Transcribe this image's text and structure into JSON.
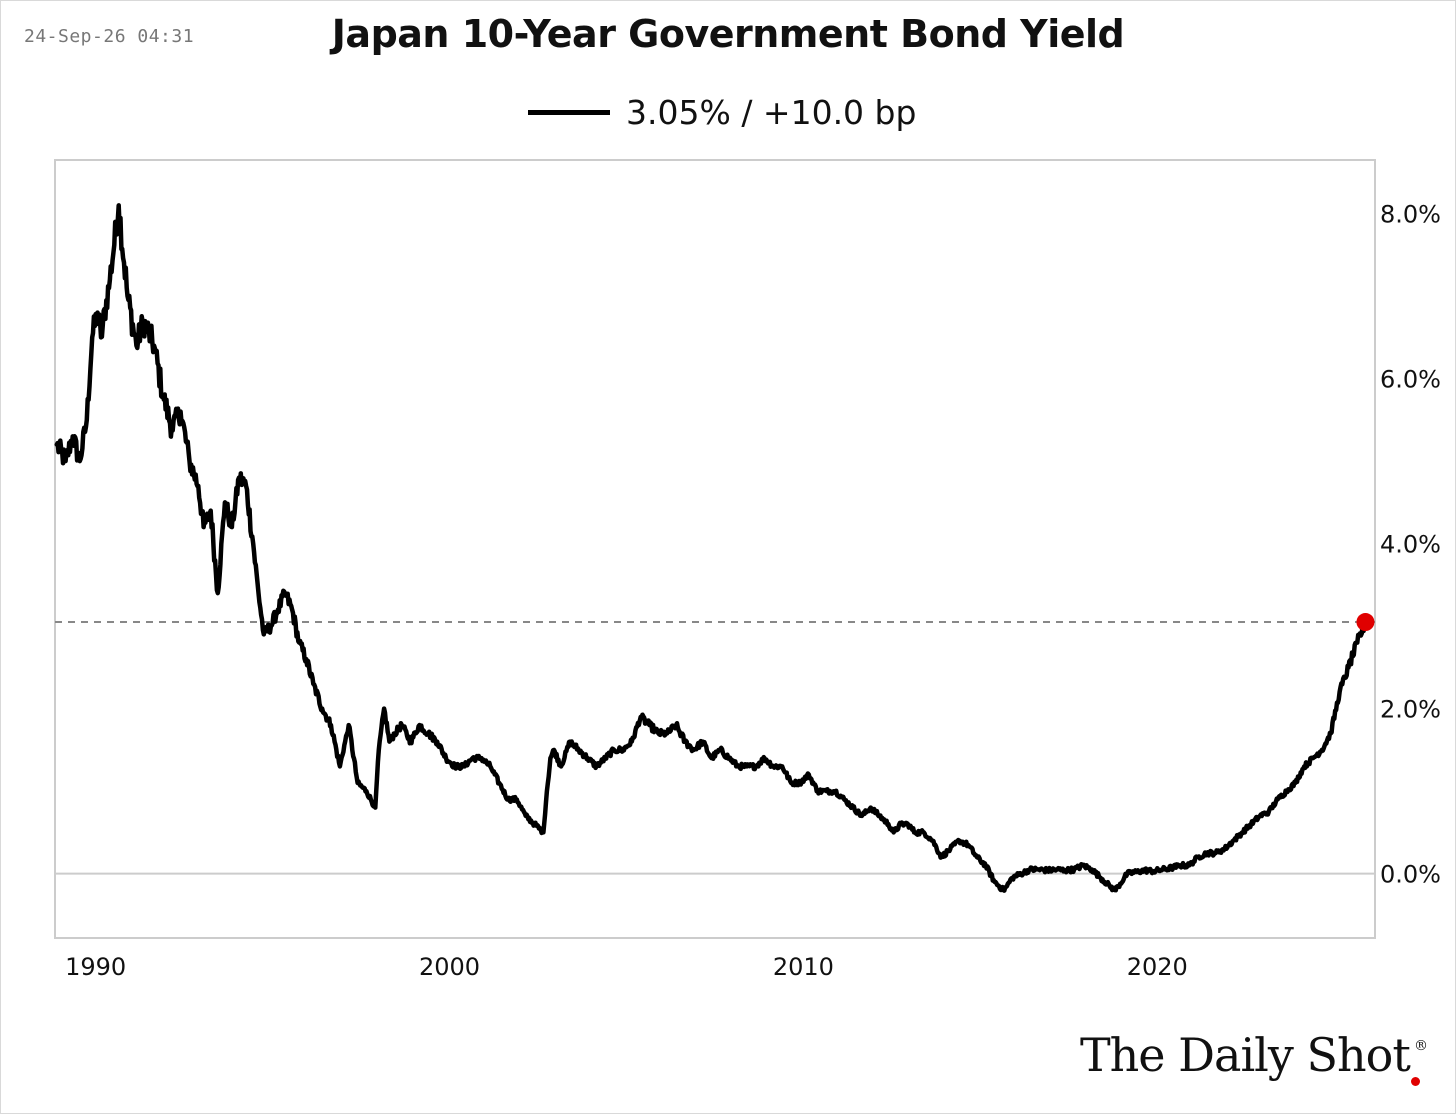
{
  "timestamp": "24-Sep-26 04:31",
  "title": "Japan 10-Year Government Bond Yield",
  "legend": {
    "label": "3.05% / +10.0 bp"
  },
  "brand": {
    "name": "The Daily Shot",
    "reg_mark": "®"
  },
  "colors": {
    "line": "#000000",
    "marker": "#e00000",
    "grid": "#cccccc",
    "reference_line": "#888888"
  },
  "chart_data": {
    "type": "line",
    "title": "Japan 10-Year Government Bond Yield",
    "xlabel": "",
    "ylabel": "",
    "x_ticks": [
      "1990",
      "2000",
      "2010",
      "2020"
    ],
    "y_ticks": [
      "0.0%",
      "2.0%",
      "4.0%",
      "6.0%",
      "8.0%"
    ],
    "xlim": [
      1989.7,
      2027.0
    ],
    "ylim": [
      -0.78,
      8.65
    ],
    "y_axis_side": "right",
    "grid": false,
    "reference_line": {
      "y": 3.05,
      "style": "dashed"
    },
    "last_point": {
      "x": 2026.73,
      "y": 3.05
    },
    "series": [
      {
        "name": "3.05% / +10.0 bp",
        "x": [
          1989.75,
          1990.0,
          1990.2,
          1990.4,
          1990.6,
          1990.75,
          1990.9,
          1991.0,
          1991.25,
          1991.5,
          1991.75,
          1992.0,
          1992.2,
          1992.5,
          1992.75,
          1993.0,
          1993.25,
          1993.5,
          1993.75,
          1993.9,
          1994.1,
          1994.3,
          1994.5,
          1994.7,
          1994.9,
          1995.1,
          1995.3,
          1995.45,
          1995.6,
          1995.8,
          1996.0,
          1996.2,
          1996.4,
          1996.6,
          1996.8,
          1997.0,
          1997.25,
          1997.5,
          1997.75,
          1998.0,
          1998.25,
          1998.5,
          1998.75,
          1998.85,
          1999.0,
          1999.15,
          1999.3,
          1999.5,
          1999.75,
          2000.0,
          2000.25,
          2000.5,
          2000.75,
          2001.0,
          2001.25,
          2001.5,
          2001.75,
          2002.0,
          2002.25,
          2002.5,
          2002.75,
          2003.0,
          2003.25,
          2003.5,
          2003.6,
          2003.7,
          2003.8,
          2004.0,
          2004.25,
          2004.5,
          2004.75,
          2005.0,
          2005.25,
          2005.5,
          2005.75,
          2006.0,
          2006.25,
          2006.5,
          2006.75,
          2007.0,
          2007.25,
          2007.5,
          2007.75,
          2008.0,
          2008.25,
          2008.5,
          2008.75,
          2009.0,
          2009.25,
          2009.5,
          2009.75,
          2010.0,
          2010.25,
          2010.5,
          2010.75,
          2011.0,
          2011.25,
          2011.5,
          2011.75,
          2012.0,
          2012.25,
          2012.5,
          2012.75,
          2013.0,
          2013.25,
          2013.4,
          2013.6,
          2013.8,
          2014.0,
          2014.25,
          2014.5,
          2014.75,
          2015.0,
          2015.25,
          2015.5,
          2015.75,
          2016.0,
          2016.25,
          2016.5,
          2016.6,
          2016.75,
          2017.0,
          2017.25,
          2017.5,
          2017.75,
          2018.0,
          2018.25,
          2018.5,
          2018.75,
          2019.0,
          2019.25,
          2019.5,
          2019.65,
          2019.75,
          2020.0,
          2020.25,
          2020.5,
          2020.75,
          2021.0,
          2021.25,
          2021.5,
          2021.75,
          2022.0,
          2022.25,
          2022.5,
          2022.75,
          2023.0,
          2023.25,
          2023.5,
          2023.75,
          2024.0,
          2024.25,
          2024.5,
          2024.75,
          2025.0,
          2025.25,
          2025.5,
          2025.75,
          2026.0,
          2026.25,
          2026.5,
          2026.73
        ],
        "y": [
          5.2,
          5.0,
          5.3,
          5.0,
          5.5,
          6.5,
          6.8,
          6.5,
          7.2,
          8.1,
          7.0,
          6.4,
          6.7,
          6.4,
          5.8,
          5.4,
          5.6,
          5.0,
          4.7,
          4.2,
          4.4,
          3.4,
          4.5,
          4.2,
          4.8,
          4.7,
          4.0,
          3.4,
          2.9,
          3.0,
          3.2,
          3.4,
          3.2,
          2.8,
          2.6,
          2.3,
          2.0,
          1.8,
          1.3,
          1.8,
          1.1,
          1.0,
          0.8,
          1.5,
          2.0,
          1.6,
          1.7,
          1.8,
          1.6,
          1.8,
          1.7,
          1.6,
          1.4,
          1.3,
          1.3,
          1.4,
          1.4,
          1.3,
          1.1,
          0.9,
          0.9,
          0.7,
          0.6,
          0.5,
          1.0,
          1.4,
          1.5,
          1.3,
          1.6,
          1.5,
          1.4,
          1.3,
          1.4,
          1.5,
          1.5,
          1.6,
          1.9,
          1.8,
          1.7,
          1.7,
          1.8,
          1.6,
          1.5,
          1.6,
          1.4,
          1.5,
          1.4,
          1.3,
          1.3,
          1.3,
          1.4,
          1.3,
          1.3,
          1.1,
          1.1,
          1.2,
          1.0,
          1.0,
          1.0,
          0.9,
          0.8,
          0.7,
          0.8,
          0.7,
          0.6,
          0.5,
          0.6,
          0.6,
          0.5,
          0.5,
          0.4,
          0.2,
          0.3,
          0.4,
          0.35,
          0.2,
          0.1,
          -0.1,
          -0.2,
          -0.15,
          -0.05,
          0.0,
          0.05,
          0.05,
          0.04,
          0.05,
          0.04,
          0.05,
          0.1,
          0.05,
          -0.05,
          -0.15,
          -0.2,
          -0.15,
          0.0,
          0.02,
          0.04,
          0.03,
          0.05,
          0.07,
          0.1,
          0.1,
          0.2,
          0.25,
          0.25,
          0.3,
          0.4,
          0.5,
          0.6,
          0.7,
          0.75,
          0.9,
          1.0,
          1.1,
          1.3,
          1.4,
          1.5,
          1.7,
          2.2,
          2.5,
          2.8,
          3.05
        ]
      }
    ]
  }
}
